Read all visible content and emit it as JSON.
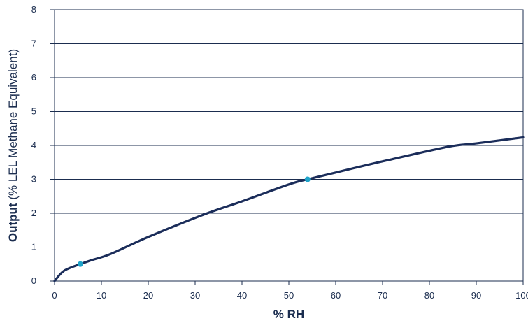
{
  "chart_data": {
    "type": "line",
    "title": "",
    "xlabel": "% RH",
    "ylabel_bold": "Output",
    "ylabel_rest": " (% LEL Methane Equivalent)",
    "xlim": [
      0,
      100
    ],
    "ylim": [
      0,
      8
    ],
    "x_ticks": [
      "0",
      "10",
      "20",
      "30",
      "40",
      "50",
      "60",
      "70",
      "80",
      "90",
      "100"
    ],
    "y_ticks": [
      "0",
      "1",
      "2",
      "3",
      "4",
      "5",
      "6",
      "7",
      "8"
    ],
    "grid": "horizontal",
    "series": [
      {
        "color": "#1b2d5a",
        "x": [
          0,
          2,
          5.5,
          8,
          12,
          20,
          32,
          40,
          50,
          54,
          60,
          70,
          84,
          90,
          100
        ],
        "y": [
          0,
          0.3,
          0.5,
          0.62,
          0.8,
          1.3,
          1.97,
          2.35,
          2.85,
          3.0,
          3.2,
          3.53,
          3.96,
          4.06,
          4.24
        ]
      }
    ],
    "markers": [
      {
        "x": 5.5,
        "y": 0.5,
        "color": "#1fa3c9"
      },
      {
        "x": 54,
        "y": 3.0,
        "color": "#1fa3c9"
      }
    ]
  }
}
